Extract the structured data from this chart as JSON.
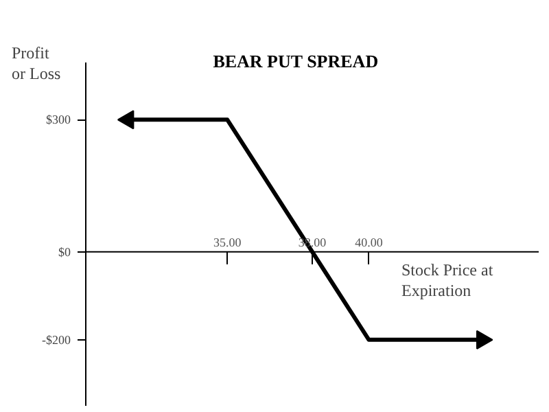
{
  "chart_data": {
    "type": "line",
    "title": "BEAR PUT SPREAD",
    "xlabel": "Stock Price at Expiration",
    "ylabel": "Profit or Loss",
    "x": [
      31.5,
      35,
      40,
      44
    ],
    "series": [
      {
        "color": "#000000",
        "values": [
          300,
          300,
          -200,
          -200
        ]
      }
    ],
    "xlim": [
      30,
      46
    ],
    "ylim": [
      -350,
      430
    ],
    "xticks": [
      {
        "value": 35,
        "label": "35.00"
      },
      {
        "value": 38,
        "label": "38.00"
      },
      {
        "value": 40,
        "label": "40.00"
      }
    ],
    "yticks": [
      {
        "value": 300,
        "label": "$300"
      },
      {
        "value": 0,
        "label": "$0"
      },
      {
        "value": -200,
        "label": "-$200"
      }
    ],
    "grid": false,
    "line_style": "solid"
  }
}
